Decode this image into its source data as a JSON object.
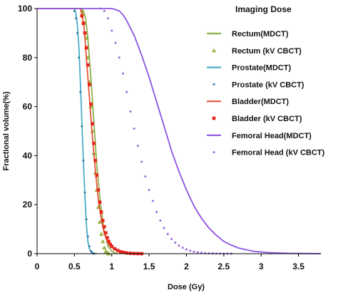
{
  "chart_data": {
    "type": "line",
    "xlabel": "Dose (Gy)",
    "ylabel": "Fractional volume(%)",
    "xlim": [
      0,
      3.8
    ],
    "ylim": [
      0,
      100
    ],
    "x_ticks": [
      0,
      0.5,
      1,
      1.5,
      2,
      2.5,
      3,
      3.5
    ],
    "x_tick_labels": [
      "0",
      "0.5",
      "1",
      "1.5",
      "2",
      "2.5",
      "3",
      "3.5"
    ],
    "y_ticks": [
      0,
      20,
      40,
      60,
      80,
      100
    ],
    "y_tick_labels": [
      "0",
      "20",
      "40",
      "60",
      "80",
      "100"
    ],
    "grid": false,
    "legend": {
      "title": "Imaging Dose",
      "placement": "top-right"
    },
    "series": [
      {
        "name": "Rectum(MDCT)",
        "style": "line",
        "color": "#8db04a",
        "x": [
          0,
          0.6,
          0.62,
          0.65,
          0.68,
          0.72,
          0.76,
          0.8,
          0.85,
          0.9,
          0.95,
          1.0,
          1.05,
          1.08
        ],
        "y": [
          100,
          100,
          99,
          96,
          88,
          72,
          54,
          36,
          20,
          9,
          3,
          1,
          0.2,
          0
        ]
      },
      {
        "name": "Rectum (kV CBCT)",
        "style": "triangle",
        "color": "#9ab54a",
        "x": [
          0.6,
          0.62,
          0.64,
          0.66,
          0.68,
          0.7,
          0.72,
          0.74,
          0.76,
          0.78,
          0.8,
          0.82,
          0.84,
          0.86,
          0.88,
          0.9,
          0.92,
          0.94,
          0.96
        ],
        "y": [
          99,
          98,
          94,
          88,
          80,
          70,
          60,
          50,
          41,
          33,
          26,
          19,
          13,
          8,
          5,
          2.5,
          1,
          0.5,
          0
        ]
      },
      {
        "name": "Prostate(MDCT)",
        "style": "line",
        "color": "#4aacc6",
        "x": [
          0,
          0.5,
          0.52,
          0.54,
          0.56,
          0.58,
          0.6,
          0.62,
          0.64,
          0.66,
          0.68,
          0.7,
          0.72,
          0.75,
          0.8
        ],
        "y": [
          100,
          100,
          98,
          93,
          84,
          70,
          54,
          38,
          24,
          12,
          5,
          2,
          0.8,
          0.2,
          0
        ]
      },
      {
        "name": "Prostate (kV CBCT)",
        "style": "dot",
        "color": "#2f7fa0",
        "x": [
          0.5,
          0.52,
          0.54,
          0.56,
          0.58,
          0.6,
          0.62,
          0.64,
          0.66,
          0.68,
          0.7,
          0.72,
          0.74,
          0.76
        ],
        "y": [
          99,
          96,
          90,
          80,
          66,
          52,
          38,
          25,
          14,
          7,
          3,
          1,
          0.4,
          0
        ]
      },
      {
        "name": "Bladder(MDCT)",
        "style": "line",
        "color": "#e8553a",
        "x": [
          0,
          0.58,
          0.6,
          0.63,
          0.66,
          0.7,
          0.74,
          0.78,
          0.82,
          0.86,
          0.9,
          0.95,
          1.0,
          1.1,
          1.2,
          1.3,
          1.4
        ],
        "y": [
          100,
          100,
          98,
          92,
          80,
          64,
          48,
          34,
          22,
          14,
          8,
          4.5,
          2.5,
          1,
          0.4,
          0.1,
          0
        ]
      },
      {
        "name": "Bladder (kV CBCT)",
        "style": "square",
        "color": "#e8231a",
        "x": [
          0.6,
          0.62,
          0.64,
          0.66,
          0.68,
          0.7,
          0.72,
          0.74,
          0.76,
          0.78,
          0.8,
          0.82,
          0.84,
          0.86,
          0.88,
          0.9,
          0.92,
          0.94,
          0.96,
          0.98,
          1.0,
          1.04,
          1.08,
          1.12,
          1.16,
          1.2,
          1.25,
          1.3,
          1.35,
          1.4
        ],
        "y": [
          97,
          94,
          90,
          84,
          77,
          69,
          61,
          53,
          45,
          38,
          32,
          26,
          21,
          17,
          13.5,
          11,
          8.5,
          6.5,
          5,
          3.8,
          3,
          2,
          1.3,
          0.8,
          0.5,
          0.3,
          0.15,
          0.08,
          0.03,
          0
        ]
      },
      {
        "name": "Femoral Head(MDCT)",
        "style": "line",
        "color": "#8d52e0",
        "x": [
          0,
          1.0,
          1.05,
          1.1,
          1.15,
          1.2,
          1.3,
          1.4,
          1.5,
          1.6,
          1.7,
          1.8,
          1.9,
          2.0,
          2.1,
          2.2,
          2.3,
          2.4,
          2.5,
          2.6,
          2.7,
          2.8,
          2.9,
          3.0,
          3.1,
          3.2,
          3.3,
          3.4,
          3.5,
          3.6,
          3.7,
          3.8
        ],
        "y": [
          100,
          100,
          99.6,
          99,
          97.5,
          95,
          89,
          81,
          72,
          62,
          52,
          42,
          33.5,
          26,
          19.5,
          14.5,
          10.5,
          7.5,
          5,
          3.5,
          2.3,
          1.6,
          1,
          0.7,
          0.45,
          0.3,
          0.2,
          0.12,
          0.08,
          0.05,
          0.02,
          0
        ]
      },
      {
        "name": "Femoral Head (kV CBCT)",
        "style": "dot",
        "color": "#9a66e0",
        "x": [
          0.85,
          0.9,
          0.95,
          1.0,
          1.05,
          1.1,
          1.15,
          1.2,
          1.25,
          1.3,
          1.35,
          1.4,
          1.45,
          1.5,
          1.55,
          1.6,
          1.65,
          1.7,
          1.75,
          1.8,
          1.85,
          1.9,
          1.95,
          2.0,
          2.05,
          2.1,
          2.15,
          2.2,
          2.25,
          2.3,
          2.35,
          2.4,
          2.45,
          2.5,
          2.55,
          2.6
        ],
        "y": [
          100,
          99,
          96,
          91,
          86,
          80,
          73.5,
          66,
          58,
          51,
          44,
          37.5,
          31.5,
          26,
          21.5,
          17,
          13.5,
          10.5,
          8,
          6,
          4.5,
          3.3,
          2.4,
          1.7,
          1.2,
          0.8,
          0.55,
          0.35,
          0.22,
          0.14,
          0.08,
          0.05,
          0.03,
          0.02,
          0.01,
          0
        ]
      }
    ]
  }
}
